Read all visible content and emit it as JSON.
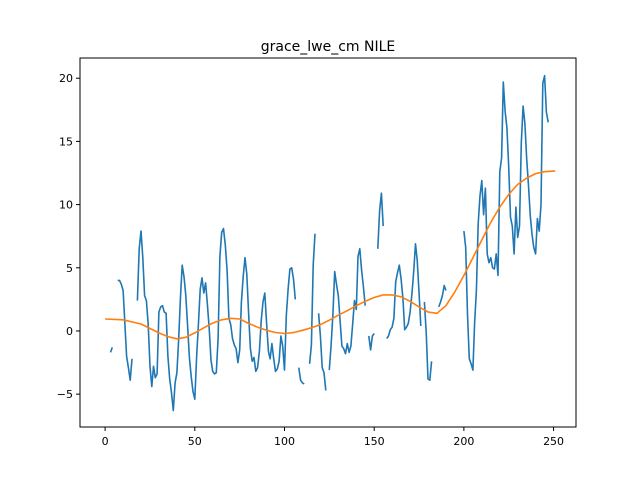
{
  "chart_data": {
    "type": "line",
    "title": "grace_lwe_cm NILE",
    "xlabel": "",
    "ylabel": "",
    "xlim": [
      -14,
      262.5
    ],
    "ylim": [
      -7.6,
      21.6
    ],
    "xticks": [
      0,
      50,
      100,
      150,
      200,
      250
    ],
    "yticks": [
      -5,
      0,
      5,
      10,
      15,
      20
    ],
    "grid": false,
    "legend": "none",
    "series": [
      {
        "color": "#1f77b4",
        "segments": [
          [
            [
              3,
              -1.7
            ],
            [
              4,
              -1.3
            ]
          ],
          [
            [
              7,
              4.0
            ],
            [
              8,
              4.0
            ],
            [
              9,
              3.7
            ],
            [
              10,
              3.2
            ],
            [
              11,
              0.7
            ],
            [
              12,
              -2.0
            ],
            [
              13,
              -2.9
            ],
            [
              14,
              -3.9
            ],
            [
              15,
              -2.2
            ]
          ],
          [
            [
              18,
              2.4
            ],
            [
              19,
              6.5
            ],
            [
              20,
              7.9
            ],
            [
              21,
              5.8
            ],
            [
              22,
              2.8
            ],
            [
              23,
              2.4
            ],
            [
              24,
              0.5
            ],
            [
              25,
              -2.8
            ],
            [
              26,
              -4.4
            ],
            [
              27,
              -2.8
            ],
            [
              28,
              -3.7
            ],
            [
              29,
              -3.4
            ],
            [
              30,
              1.5
            ],
            [
              31,
              1.9
            ],
            [
              32,
              2.0
            ],
            [
              33,
              1.5
            ],
            [
              34,
              1.4
            ],
            [
              35,
              -2.0
            ],
            [
              36,
              -3.8
            ],
            [
              37,
              -4.9
            ],
            [
              38,
              -6.3
            ],
            [
              39,
              -4.1
            ],
            [
              40,
              -3.3
            ],
            [
              41,
              -0.6
            ],
            [
              42,
              2.7
            ],
            [
              43,
              5.2
            ],
            [
              44,
              4.3
            ],
            [
              45,
              2.8
            ],
            [
              46,
              0.4
            ],
            [
              47,
              -2.1
            ],
            [
              48,
              -3.6
            ],
            [
              49,
              -4.8
            ],
            [
              50,
              -5.4
            ],
            [
              51,
              -2.1
            ],
            [
              52,
              0.5
            ],
            [
              53,
              3.3
            ],
            [
              54,
              4.2
            ],
            [
              55,
              3.0
            ],
            [
              56,
              3.8
            ],
            [
              57,
              2.1
            ],
            [
              58,
              0.2
            ],
            [
              59,
              -2.3
            ],
            [
              60,
              -3.2
            ],
            [
              61,
              -3.4
            ],
            [
              62,
              -3.3
            ],
            [
              63,
              -0.6
            ],
            [
              64,
              5.9
            ],
            [
              65,
              7.8
            ],
            [
              66,
              8.1
            ],
            [
              67,
              6.8
            ],
            [
              68,
              4.8
            ],
            [
              69,
              1.0
            ],
            [
              70,
              0.5
            ],
            [
              71,
              -0.6
            ],
            [
              72,
              -1.1
            ],
            [
              73,
              -1.4
            ],
            [
              74,
              -2.5
            ],
            [
              75,
              -1.5
            ],
            [
              76,
              2.3
            ],
            [
              77,
              4.3
            ],
            [
              78,
              5.8
            ],
            [
              79,
              4.5
            ],
            [
              80,
              1.4
            ],
            [
              81,
              -1.4
            ],
            [
              82,
              -2.4
            ],
            [
              83,
              -2.1
            ],
            [
              84,
              -3.2
            ],
            [
              85,
              -2.9
            ],
            [
              86,
              -1.6
            ],
            [
              87,
              0.8
            ],
            [
              88,
              2.3
            ],
            [
              89,
              3.0
            ],
            [
              90,
              0.6
            ],
            [
              91,
              -1.6
            ],
            [
              92,
              -2.2
            ],
            [
              93,
              -1.0
            ],
            [
              94,
              -2.2
            ],
            [
              95,
              -3.2
            ],
            [
              96,
              -3.0
            ],
            [
              97,
              -2.4
            ],
            [
              98,
              -0.4
            ],
            [
              99,
              -1.2
            ],
            [
              100,
              -3.1
            ],
            [
              101,
              1.2
            ],
            [
              102,
              3.3
            ],
            [
              103,
              4.9
            ],
            [
              104,
              5.0
            ],
            [
              105,
              4.1
            ],
            [
              106,
              2.5
            ]
          ],
          [
            [
              108,
              -2.9
            ],
            [
              109,
              -3.9
            ],
            [
              110,
              -4.1
            ],
            [
              111,
              -4.2
            ]
          ],
          [
            [
              114,
              -2.6
            ],
            [
              115,
              -1.1
            ],
            [
              116,
              5.2
            ],
            [
              117,
              7.7
            ]
          ],
          [
            [
              119,
              1.4
            ],
            [
              120,
              -0.4
            ],
            [
              121,
              -2.9
            ],
            [
              122,
              -3.3
            ],
            [
              123,
              -4.7
            ]
          ],
          [
            [
              125,
              -3.1
            ],
            [
              126,
              -1.1
            ],
            [
              127,
              1.3
            ],
            [
              128,
              4.7
            ],
            [
              129,
              3.7
            ],
            [
              130,
              2.8
            ],
            [
              131,
              0.8
            ],
            [
              132,
              -1.2
            ],
            [
              133,
              -1.4
            ],
            [
              134,
              -1.8
            ],
            [
              135,
              -1.0
            ],
            [
              136,
              -1.7
            ],
            [
              137,
              -1.2
            ],
            [
              138,
              0.6
            ],
            [
              139,
              2.4
            ],
            [
              140,
              1.7
            ],
            [
              141,
              5.9
            ],
            [
              142,
              6.5
            ],
            [
              143,
              4.8
            ],
            [
              144,
              3.5
            ],
            [
              145,
              2.0
            ]
          ],
          [
            [
              147,
              -0.4
            ],
            [
              148,
              -1.5
            ],
            [
              149,
              -0.4
            ],
            [
              150,
              -0.2
            ]
          ],
          [
            [
              152,
              6.5
            ],
            [
              153,
              9.5
            ],
            [
              154,
              10.9
            ],
            [
              155,
              8.3
            ]
          ],
          [
            [
              157,
              -0.6
            ],
            [
              158,
              -0.4
            ],
            [
              159,
              0.1
            ],
            [
              160,
              0.3
            ],
            [
              161,
              1.0
            ],
            [
              162,
              3.9
            ],
            [
              163,
              4.6
            ],
            [
              164,
              5.2
            ],
            [
              165,
              4.1
            ],
            [
              166,
              2.6
            ],
            [
              167,
              0.1
            ],
            [
              168,
              0.3
            ],
            [
              169,
              0.6
            ],
            [
              170,
              1.5
            ],
            [
              171,
              2.9
            ],
            [
              172,
              4.7
            ],
            [
              173,
              6.9
            ],
            [
              174,
              5.6
            ],
            [
              175,
              3.1
            ],
            [
              176,
              0.4
            ]
          ],
          [
            [
              178,
              2.3
            ],
            [
              179,
              -0.1
            ],
            [
              180,
              -3.8
            ],
            [
              181,
              -3.9
            ],
            [
              182,
              -2.4
            ]
          ],
          [
            [
              186,
              1.9
            ],
            [
              187,
              2.3
            ],
            [
              188,
              2.8
            ],
            [
              189,
              3.6
            ],
            [
              190,
              3.2
            ]
          ],
          [
            [
              200,
              7.9
            ],
            [
              201,
              6.6
            ],
            [
              202,
              1.3
            ],
            [
              203,
              -2.2
            ],
            [
              204,
              -2.6
            ],
            [
              205,
              -3.1
            ],
            [
              206,
              0.6
            ],
            [
              207,
              3.2
            ],
            [
              208,
              8.5
            ],
            [
              209,
              10.7
            ],
            [
              210,
              11.9
            ],
            [
              211,
              9.2
            ],
            [
              212,
              11.3
            ],
            [
              213,
              6.1
            ],
            [
              214,
              5.4
            ],
            [
              215,
              5.8
            ],
            [
              216,
              5.0
            ],
            [
              217,
              4.9
            ],
            [
              218,
              6.1
            ],
            [
              219,
              4.4
            ],
            [
              220,
              12.6
            ],
            [
              221,
              13.7
            ],
            [
              222,
              19.7
            ],
            [
              223,
              17.4
            ],
            [
              224,
              16.1
            ],
            [
              225,
              13.0
            ],
            [
              226,
              9.0
            ],
            [
              227,
              8.3
            ],
            [
              228,
              6.1
            ],
            [
              229,
              9.8
            ],
            [
              230,
              7.4
            ],
            [
              231,
              8.3
            ],
            [
              232,
              14.9
            ],
            [
              233,
              17.8
            ],
            [
              234,
              16.4
            ],
            [
              235,
              13.6
            ],
            [
              236,
              11.5
            ],
            [
              237,
              9.1
            ],
            [
              238,
              7.6
            ],
            [
              239,
              6.6
            ],
            [
              240,
              6.1
            ],
            [
              241,
              8.9
            ],
            [
              242,
              7.9
            ],
            [
              243,
              10.0
            ],
            [
              244,
              19.6
            ],
            [
              245,
              20.2
            ],
            [
              246,
              17.3
            ],
            [
              247,
              16.5
            ]
          ]
        ]
      },
      {
        "color": "#ff7f0e",
        "segments": [
          [
            [
              0,
              0.95
            ],
            [
              10,
              0.88
            ],
            [
              20,
              0.55
            ],
            [
              30,
              -0.15
            ],
            [
              35,
              -0.45
            ],
            [
              40,
              -0.62
            ],
            [
              45,
              -0.5
            ],
            [
              50,
              -0.15
            ],
            [
              55,
              0.25
            ],
            [
              60,
              0.62
            ],
            [
              65,
              0.88
            ],
            [
              70,
              1.0
            ],
            [
              75,
              0.95
            ],
            [
              80,
              0.6
            ],
            [
              85,
              0.3
            ],
            [
              90,
              0.05
            ],
            [
              95,
              -0.12
            ],
            [
              100,
              -0.2
            ],
            [
              105,
              -0.13
            ],
            [
              110,
              0.05
            ],
            [
              115,
              0.25
            ],
            [
              120,
              0.5
            ],
            [
              125,
              0.85
            ],
            [
              130,
              1.25
            ],
            [
              135,
              1.6
            ],
            [
              140,
              2.0
            ],
            [
              145,
              2.35
            ],
            [
              150,
              2.65
            ],
            [
              155,
              2.85
            ],
            [
              160,
              2.85
            ],
            [
              165,
              2.7
            ],
            [
              170,
              2.35
            ],
            [
              175,
              1.9
            ],
            [
              180,
              1.5
            ],
            [
              185,
              1.4
            ],
            [
              190,
              2.0
            ],
            [
              195,
              3.1
            ],
            [
              200,
              4.4
            ],
            [
              205,
              5.8
            ],
            [
              210,
              7.2
            ],
            [
              215,
              8.6
            ],
            [
              220,
              9.8
            ],
            [
              225,
              10.8
            ],
            [
              230,
              11.6
            ],
            [
              235,
              12.1
            ],
            [
              240,
              12.45
            ],
            [
              245,
              12.6
            ],
            [
              250,
              12.65
            ],
            [
              251,
              12.66
            ]
          ]
        ]
      }
    ]
  }
}
